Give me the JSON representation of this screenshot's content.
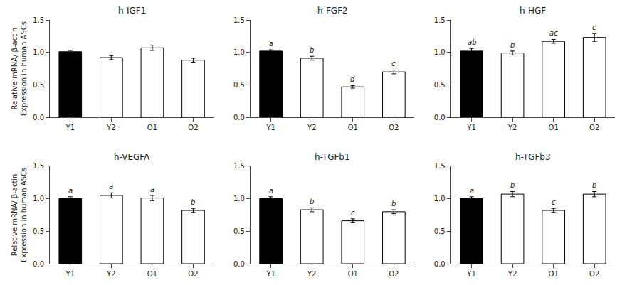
{
  "chart_data": [
    {
      "type": "bar",
      "title": "h-IGF1",
      "categories": [
        "Y1",
        "Y2",
        "O1",
        "O2"
      ],
      "values": [
        1.01,
        0.92,
        1.07,
        0.88
      ],
      "errors": [
        0.02,
        0.03,
        0.04,
        0.03
      ],
      "colors": [
        "black",
        "white",
        "white",
        "white"
      ],
      "ylabel": "Relative mRNA/ β-actin\nExpression in human ASCs",
      "ylim": [
        0,
        1.5
      ],
      "yticks": [
        {
          "value": 0,
          "label": "0.0"
        },
        0.5,
        {
          "value": 1,
          "label": "1.0"
        },
        1.5
      ],
      "grid": false
    },
    {
      "type": "bar",
      "title": "h-FGF2",
      "categories": [
        "Y1",
        "Y2",
        "O1",
        "O2"
      ],
      "values": [
        1.02,
        0.91,
        0.47,
        0.7
      ],
      "errors": [
        0.02,
        0.03,
        0.02,
        0.03
      ],
      "annotations": [
        "a",
        "b",
        "d",
        "c"
      ],
      "colors": [
        "black",
        "white",
        "white",
        "white"
      ],
      "ylim": [
        0,
        1.5
      ],
      "yticks": [
        {
          "value": 0,
          "label": "0.0"
        },
        0.5,
        {
          "value": 1,
          "label": "1.0"
        },
        1.5
      ],
      "grid": false
    },
    {
      "type": "bar",
      "title": "h-HGF",
      "categories": [
        "Y1",
        "Y2",
        "O1",
        "O2"
      ],
      "values": [
        1.02,
        0.99,
        1.17,
        1.23
      ],
      "errors": [
        0.04,
        0.03,
        0.03,
        0.06
      ],
      "annotations": [
        "ab",
        "b",
        "ac",
        "c"
      ],
      "colors": [
        "black",
        "white",
        "white",
        "white"
      ],
      "ylim": [
        0,
        1.5
      ],
      "yticks": [
        {
          "value": 0,
          "label": "0.0"
        },
        0.5,
        {
          "value": 1,
          "label": "1.0"
        },
        1.5
      ],
      "grid": false
    },
    {
      "type": "bar",
      "title": "h-VEGFA",
      "categories": [
        "Y1",
        "Y2",
        "O1",
        "O2"
      ],
      "values": [
        1.0,
        1.05,
        1.01,
        0.82
      ],
      "errors": [
        0.03,
        0.04,
        0.04,
        0.03
      ],
      "annotations": [
        "a",
        "a",
        "a",
        "b"
      ],
      "colors": [
        "black",
        "white",
        "white",
        "white"
      ],
      "ylabel": "Relative mRNA/ β-actin\nExpression in human ASCs",
      "ylim": [
        0,
        1.5
      ],
      "yticks": [
        {
          "value": 0,
          "label": "0.0"
        },
        0.5,
        {
          "value": 1,
          "label": "1.0"
        },
        1.5
      ],
      "grid": false
    },
    {
      "type": "bar",
      "title": "h-TGFb1",
      "categories": [
        "Y1",
        "Y2",
        "O1",
        "O2"
      ],
      "values": [
        1.0,
        0.83,
        0.66,
        0.8
      ],
      "errors": [
        0.03,
        0.03,
        0.03,
        0.03
      ],
      "annotations": [
        "a",
        "b",
        "c",
        "b"
      ],
      "colors": [
        "black",
        "white",
        "white",
        "white"
      ],
      "ylim": [
        0,
        1.5
      ],
      "yticks": [
        {
          "value": 0,
          "label": "0.0"
        },
        0.5,
        {
          "value": 1,
          "label": "1.0"
        },
        1.5
      ],
      "grid": false
    },
    {
      "type": "bar",
      "title": "h-TGFb3",
      "categories": [
        "Y1",
        "Y2",
        "O1",
        "O2"
      ],
      "values": [
        1.0,
        1.07,
        0.82,
        1.07
      ],
      "errors": [
        0.03,
        0.04,
        0.03,
        0.04
      ],
      "annotations": [
        "a",
        "b",
        "c",
        "b"
      ],
      "colors": [
        "black",
        "white",
        "white",
        "white"
      ],
      "ylim": [
        0,
        1.5
      ],
      "yticks": [
        {
          "value": 0,
          "label": "0.0"
        },
        0.5,
        {
          "value": 1,
          "label": "1.0"
        },
        1.5
      ],
      "grid": false
    }
  ]
}
